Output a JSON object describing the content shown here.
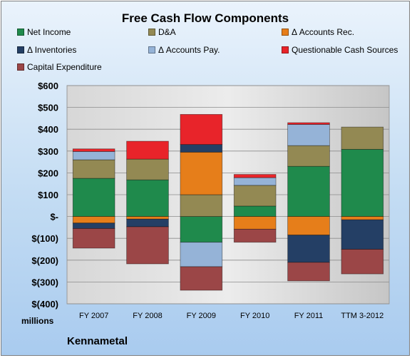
{
  "chart_data": {
    "type": "bar",
    "stacked": true,
    "title": "Free Cash Flow Components",
    "ylabel": "millions",
    "ylim": [
      -400,
      600
    ],
    "yticks": [
      600,
      500,
      400,
      300,
      200,
      100,
      0,
      -100,
      -200,
      -300,
      -400
    ],
    "ytick_labels": [
      "$600",
      "$500",
      "$400",
      "$300",
      "$200",
      "$100",
      "$-",
      "$(100)",
      "$(200)",
      "$(300)",
      "$(400)"
    ],
    "grid": true,
    "legend_position": "top",
    "categories": [
      "FY 2007",
      "FY 2008",
      "FY 2009",
      "FY 2010",
      "FY 2011",
      "TTM 3-2012"
    ],
    "series": [
      {
        "name": "Net Income",
        "color": "#1f8a4c",
        "values": [
          175,
          168,
          -118,
          48,
          230,
          308
        ]
      },
      {
        "name": "D&A",
        "color": "#938953",
        "values": [
          85,
          95,
          100,
          95,
          95,
          102
        ]
      },
      {
        "name": "Δ Accounts Rec.",
        "color": "#e67e1a",
        "values": [
          -30,
          -12,
          195,
          -58,
          -85,
          -15
        ]
      },
      {
        "name": "Δ Inventories",
        "color": "#243f65",
        "values": [
          -25,
          -35,
          35,
          0,
          -125,
          -135
        ]
      },
      {
        "name": "Δ Accounts Pay.",
        "color": "#95b3d7",
        "values": [
          38,
          0,
          -112,
          35,
          97,
          0
        ]
      },
      {
        "name": "Questionable Cash Sources",
        "color": "#e8242a",
        "values": [
          12,
          82,
          138,
          15,
          8,
          0
        ]
      },
      {
        "name": "Capital Expenditure",
        "color": "#9b4647",
        "values": [
          -90,
          -170,
          -108,
          -60,
          -85,
          -113
        ]
      }
    ]
  },
  "footer": {
    "company": "Kennametal",
    "units_label": "millions"
  }
}
